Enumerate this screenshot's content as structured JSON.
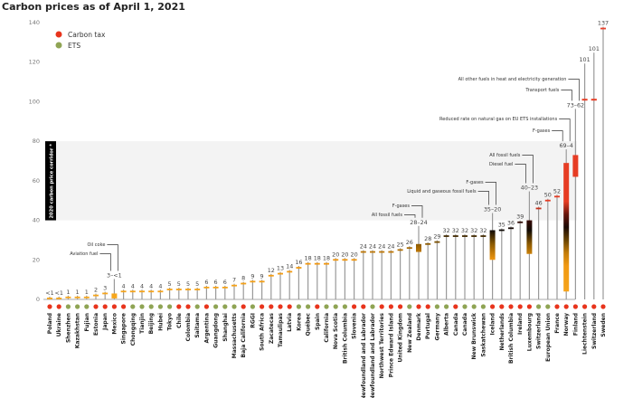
{
  "chart_data": {
    "type": "bar",
    "title": "Carbon prices as of April 1, 2021",
    "ylim": [
      0,
      140
    ],
    "yticks": [
      0,
      20,
      40,
      60,
      80,
      100,
      120,
      140
    ],
    "grid": false,
    "legend": {
      "placement": "top-left",
      "entries": [
        {
          "label": "Carbon tax",
          "key": "tax",
          "color": "#e8341c"
        },
        {
          "label": "ETS",
          "key": "ets",
          "color": "#8fa454"
        }
      ]
    },
    "corridor": {
      "label": "2020 carbon price corridor *",
      "range": [
        40,
        80
      ],
      "color": "#f3f3f3"
    },
    "items": [
      {
        "name": "Poland",
        "type": "tax",
        "value": 0.5,
        "label": "<1"
      },
      {
        "name": "Ukraine",
        "type": "tax",
        "value": 0.5,
        "label": "<1"
      },
      {
        "name": "Shenzhen",
        "type": "ets",
        "value": 1,
        "label": "1"
      },
      {
        "name": "Kazakhstan",
        "type": "ets",
        "value": 1,
        "label": "1"
      },
      {
        "name": "Fujian",
        "type": "ets",
        "value": 1,
        "label": "1"
      },
      {
        "name": "Estonia",
        "type": "tax",
        "value": 2,
        "label": "2"
      },
      {
        "name": "Japan",
        "type": "tax",
        "value": 3,
        "label": "3"
      },
      {
        "name": "Mexico",
        "type": "tax",
        "range": [
          3,
          0.5
        ],
        "label": "3–<1",
        "notes": [
          "Aviation fuel",
          "Oil coke"
        ]
      },
      {
        "name": "Singapore",
        "type": "tax",
        "value": 4,
        "label": "4"
      },
      {
        "name": "Chongqing",
        "type": "ets",
        "value": 4,
        "label": "4"
      },
      {
        "name": "Tianjin",
        "type": "ets",
        "value": 4,
        "label": "4"
      },
      {
        "name": "Beijing",
        "type": "ets",
        "value": 4,
        "label": "4"
      },
      {
        "name": "Hubei",
        "type": "ets",
        "value": 4,
        "label": "4"
      },
      {
        "name": "Tokyo",
        "type": "ets",
        "value": 5,
        "label": "5"
      },
      {
        "name": "Chile",
        "type": "tax",
        "value": 5,
        "label": "5"
      },
      {
        "name": "Colombia",
        "type": "tax",
        "value": 5,
        "label": "5"
      },
      {
        "name": "Saitama",
        "type": "ets",
        "value": 5,
        "label": "5"
      },
      {
        "name": "Argentina",
        "type": "tax",
        "value": 6,
        "label": "6"
      },
      {
        "name": "Guangdong",
        "type": "ets",
        "value": 6,
        "label": "6"
      },
      {
        "name": "Shanghai",
        "type": "ets",
        "value": 6,
        "label": "6"
      },
      {
        "name": "Massachusetts",
        "type": "ets",
        "value": 7,
        "label": "7"
      },
      {
        "name": "Baja California",
        "type": "tax",
        "value": 8,
        "label": "8"
      },
      {
        "name": "RGGI",
        "type": "ets",
        "value": 9,
        "label": "9"
      },
      {
        "name": "South Africa",
        "type": "tax",
        "value": 9,
        "label": "9"
      },
      {
        "name": "Zacatecas",
        "type": "tax",
        "value": 12,
        "label": "12"
      },
      {
        "name": "Tamaulipas",
        "type": "tax",
        "value": 13,
        "label": "13"
      },
      {
        "name": "Latvia",
        "type": "tax",
        "value": 14,
        "label": "14"
      },
      {
        "name": "Korea",
        "type": "ets",
        "value": 16,
        "label": "16"
      },
      {
        "name": "Québec",
        "type": "ets",
        "value": 18,
        "label": "18"
      },
      {
        "name": "Spain",
        "type": "tax",
        "value": 18,
        "label": "18"
      },
      {
        "name": "California",
        "type": "ets",
        "value": 18,
        "label": "18"
      },
      {
        "name": "Nova Scotia",
        "type": "ets",
        "value": 20,
        "label": "20"
      },
      {
        "name": "British Columbia",
        "type": "ets",
        "value": 20,
        "label": "20"
      },
      {
        "name": "Slovenia",
        "type": "tax",
        "value": 20,
        "label": "20"
      },
      {
        "name": "Newfoundland and Labrador",
        "type": "tax",
        "value": 24,
        "label": "24"
      },
      {
        "name": "Newfoundland and Labrador",
        "type": "ets",
        "value": 24,
        "label": "24"
      },
      {
        "name": "Northwest Territories",
        "type": "tax",
        "value": 24,
        "label": "24"
      },
      {
        "name": "Prince Edward Island",
        "type": "tax",
        "value": 24,
        "label": "24"
      },
      {
        "name": "United Kingdom",
        "type": "tax",
        "value": 25,
        "label": "25"
      },
      {
        "name": "New Zealand",
        "type": "ets",
        "value": 26,
        "label": "26"
      },
      {
        "name": "Denmark",
        "type": "tax",
        "range": [
          28,
          24
        ],
        "label": "28–24",
        "notes": [
          "All fossil fuels",
          "F-gases"
        ]
      },
      {
        "name": "Portugal",
        "type": "tax",
        "value": 28,
        "label": "28"
      },
      {
        "name": "Germany",
        "type": "ets",
        "value": 29,
        "label": "29"
      },
      {
        "name": "Alberta",
        "type": "ets",
        "value": 32,
        "label": "32"
      },
      {
        "name": "Canada",
        "type": "tax",
        "value": 32,
        "label": "32"
      },
      {
        "name": "Canada",
        "type": "ets",
        "value": 32,
        "label": "32"
      },
      {
        "name": "New Brunswick",
        "type": "ets",
        "value": 32,
        "label": "32"
      },
      {
        "name": "Saskatchewan",
        "type": "ets",
        "value": 32,
        "label": "32"
      },
      {
        "name": "Iceland",
        "type": "tax",
        "range": [
          35,
          20
        ],
        "label": "35–20",
        "notes": [
          "Liquid and gaseous fossil fuels",
          "F-gases"
        ]
      },
      {
        "name": "Netherlands",
        "type": "tax",
        "value": 35,
        "label": "35"
      },
      {
        "name": "British Columbia",
        "type": "tax",
        "value": 36,
        "label": "36"
      },
      {
        "name": "Ireland",
        "type": "tax",
        "value": 39,
        "label": "39"
      },
      {
        "name": "Luxembourg",
        "type": "tax",
        "range": [
          40,
          23
        ],
        "label": "40–23",
        "notes": [
          "Diesel fuel",
          "All fossil fuels"
        ]
      },
      {
        "name": "Switzerland",
        "type": "ets",
        "value": 46,
        "label": "46"
      },
      {
        "name": "European Union",
        "type": "ets",
        "value": 50,
        "label": "50"
      },
      {
        "name": "France",
        "type": "tax",
        "value": 52,
        "label": "52"
      },
      {
        "name": "Norway",
        "type": "tax",
        "range": [
          69,
          4
        ],
        "label": "69–4",
        "notes": [
          "F-gases",
          "Reduced rate on natural gas on EU ETS installations"
        ]
      },
      {
        "name": "Finland",
        "type": "tax",
        "range": [
          73,
          62
        ],
        "label": "73–62",
        "notes": [
          "Transport fuels",
          "All other fuels in heat and electricity generation"
        ]
      },
      {
        "name": "Liechtenstein",
        "type": "tax",
        "value": 101,
        "label": "101"
      },
      {
        "name": "Switzerland",
        "type": "tax",
        "value": 101,
        "label": "101"
      },
      {
        "name": "Sweden",
        "type": "tax",
        "value": 137,
        "label": "137"
      }
    ]
  }
}
